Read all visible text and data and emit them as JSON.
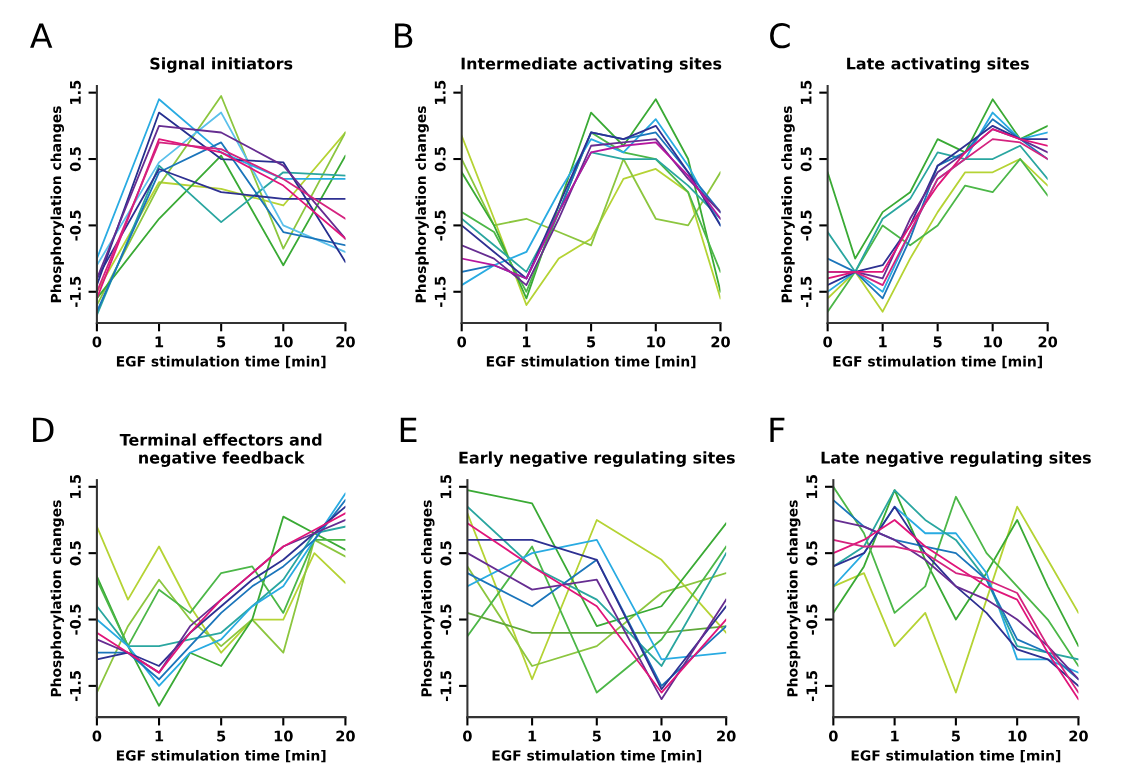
{
  "chart_data": [
    {
      "type": "line",
      "title": "Signal initiators",
      "xlabel": "EGF stimulation time [min]",
      "ylabel": "Phosphorylation changes",
      "annotations": [
        "A"
      ],
      "categories": [
        "0",
        "1",
        "5",
        "10",
        "20"
      ],
      "ylim": [
        -1.97,
        1.6
      ],
      "yticks": [
        -1.5,
        -0.5,
        0.5,
        1.5
      ],
      "grid": false,
      "series": [
        {
          "color": "#b5d334",
          "values": [
            -1.5,
            0.15,
            0.05,
            -0.2,
            0.9
          ]
        },
        {
          "color": "#8cc63f",
          "values": [
            -1.7,
            0.1,
            1.45,
            -0.85,
            0.9
          ]
        },
        {
          "color": "#3aaa35",
          "values": [
            -1.6,
            -0.4,
            0.55,
            -1.1,
            0.55
          ]
        },
        {
          "color": "#2aa6a0",
          "values": [
            -1.85,
            0.4,
            -0.45,
            0.3,
            0.25
          ]
        },
        {
          "color": "#5bc0eb",
          "values": [
            -1.1,
            0.45,
            1.2,
            -0.5,
            -0.9
          ]
        },
        {
          "color": "#29abe2",
          "values": [
            -1.0,
            1.4,
            0.6,
            0.2,
            0.2
          ]
        },
        {
          "color": "#1b75bb",
          "values": [
            -1.8,
            0.3,
            0.75,
            -0.6,
            -0.8
          ]
        },
        {
          "color": "#2e3192",
          "values": [
            -1.3,
            0.35,
            0.0,
            -0.1,
            -0.1
          ]
        },
        {
          "color": "#262f8f",
          "values": [
            -1.4,
            1.2,
            0.5,
            0.45,
            -1.05
          ]
        },
        {
          "color": "#662d91",
          "values": [
            -1.3,
            1.0,
            0.9,
            0.4,
            -0.7
          ]
        },
        {
          "color": "#e0157a",
          "values": [
            -1.6,
            0.8,
            0.6,
            0.1,
            -0.7
          ]
        },
        {
          "color": "#d4237f",
          "values": [
            -1.5,
            0.75,
            0.65,
            0.2,
            -0.4
          ]
        }
      ]
    },
    {
      "type": "line",
      "title": "Intermediate activating sites",
      "xlabel": "EGF stimulation time [min]",
      "ylabel": "Phosphorylation changes",
      "annotations": [
        "B"
      ],
      "categories": [
        "0",
        null,
        "1",
        null,
        "5",
        null,
        "10",
        null,
        "20"
      ],
      "ylim": [
        -1.97,
        1.6
      ],
      "yticks": [
        -1.5,
        -0.5,
        0.5,
        1.5
      ],
      "grid": false,
      "series": [
        {
          "color": "#b5d334",
          "values": [
            0.85,
            -0.4,
            -1.7,
            -1.0,
            -0.7,
            0.2,
            0.35,
            0.0,
            -1.6
          ]
        },
        {
          "color": "#8cc63f",
          "values": [
            0.5,
            -0.5,
            -0.4,
            -0.6,
            -0.8,
            0.5,
            -0.4,
            -0.5,
            0.3
          ]
        },
        {
          "color": "#3aaa35",
          "values": [
            0.3,
            -0.5,
            -1.6,
            -0.2,
            1.2,
            0.7,
            1.4,
            0.5,
            -1.5
          ]
        },
        {
          "color": "#4cb748",
          "values": [
            -0.3,
            -0.6,
            -1.5,
            -0.3,
            0.9,
            0.6,
            0.5,
            0.0,
            -1.2
          ]
        },
        {
          "color": "#2aa6a0",
          "values": [
            -0.4,
            -0.8,
            -1.2,
            -0.3,
            0.6,
            0.5,
            0.5,
            0.1,
            -0.4
          ]
        },
        {
          "color": "#29abe2",
          "values": [
            -1.4,
            -1.1,
            -0.9,
            0.0,
            0.8,
            0.6,
            1.1,
            0.4,
            -0.5
          ]
        },
        {
          "color": "#1b75bb",
          "values": [
            -1.2,
            -1.1,
            -1.3,
            -0.3,
            0.9,
            0.8,
            0.9,
            0.3,
            -0.3
          ]
        },
        {
          "color": "#2e3192",
          "values": [
            -0.5,
            -0.9,
            -1.3,
            -0.2,
            0.9,
            0.8,
            1.0,
            0.3,
            -0.5
          ]
        },
        {
          "color": "#662d91",
          "values": [
            -0.8,
            -1.0,
            -1.4,
            -0.4,
            0.7,
            0.75,
            0.8,
            0.2,
            -0.3
          ]
        },
        {
          "color": "#b5179e",
          "values": [
            -1.0,
            -1.1,
            -1.3,
            -0.3,
            0.6,
            0.7,
            0.75,
            0.25,
            -0.4
          ]
        }
      ]
    },
    {
      "type": "line",
      "title": "Late activating sites",
      "xlabel": "EGF stimulation time [min]",
      "ylabel": "Phosphorylation changes",
      "annotations": [
        "C"
      ],
      "categories": [
        "0",
        null,
        "1",
        null,
        "5",
        null,
        "10",
        null,
        "20"
      ],
      "ylim": [
        -1.97,
        1.6
      ],
      "yticks": [
        -1.5,
        -0.5,
        0.5,
        1.5
      ],
      "grid": false,
      "series": [
        {
          "color": "#b5d334",
          "values": [
            -1.6,
            -1.2,
            -1.8,
            -1.0,
            -0.3,
            0.3,
            0.3,
            0.5,
            0.1
          ]
        },
        {
          "color": "#3aaa35",
          "values": [
            0.3,
            -1.0,
            -0.3,
            0.0,
            0.8,
            0.6,
            1.4,
            0.8,
            1.0
          ]
        },
        {
          "color": "#4cb748",
          "values": [
            -1.8,
            -1.2,
            -0.5,
            -0.8,
            -0.5,
            0.1,
            0.0,
            0.5,
            -0.05
          ]
        },
        {
          "color": "#2aa6a0",
          "values": [
            -0.6,
            -1.2,
            -0.4,
            -0.1,
            0.6,
            0.5,
            0.5,
            0.7,
            0.2
          ]
        },
        {
          "color": "#29abe2",
          "values": [
            -1.5,
            -1.2,
            -1.5,
            -0.6,
            0.2,
            0.5,
            1.2,
            0.8,
            0.9
          ]
        },
        {
          "color": "#1b75bb",
          "values": [
            -1.0,
            -1.2,
            -1.6,
            -0.7,
            0.4,
            0.6,
            1.1,
            0.8,
            0.5
          ]
        },
        {
          "color": "#2e3192",
          "values": [
            -1.4,
            -1.2,
            -1.1,
            -0.5,
            0.4,
            0.7,
            1.0,
            0.8,
            0.8
          ]
        },
        {
          "color": "#662d91",
          "values": [
            -1.2,
            -1.2,
            -1.3,
            -0.4,
            0.3,
            0.6,
            0.95,
            0.8,
            0.6
          ]
        },
        {
          "color": "#e0157a",
          "values": [
            -1.3,
            -1.2,
            -1.2,
            -0.5,
            0.1,
            0.6,
            0.95,
            0.8,
            0.7
          ]
        },
        {
          "color": "#d4237f",
          "values": [
            -1.2,
            -1.2,
            -1.4,
            -0.6,
            0.2,
            0.5,
            0.8,
            0.75,
            0.5
          ]
        }
      ]
    },
    {
      "type": "line",
      "title": "Terminal effectors and\nnegative feedback",
      "xlabel": "EGF stimulation time [min]",
      "ylabel": "Phosphorylation changes",
      "annotations": [
        "D"
      ],
      "categories": [
        "0",
        null,
        "1",
        null,
        "5",
        null,
        "10",
        null,
        "20"
      ],
      "ylim": [
        -1.97,
        1.6
      ],
      "yticks": [
        -1.5,
        -0.5,
        0.5,
        1.5
      ],
      "grid": false,
      "series": [
        {
          "color": "#b5d334",
          "values": [
            0.9,
            -0.2,
            0.6,
            -0.3,
            -1.0,
            -0.5,
            -0.5,
            0.5,
            0.05
          ]
        },
        {
          "color": "#8cc63f",
          "values": [
            -1.6,
            -0.6,
            0.1,
            -0.5,
            -0.9,
            -0.5,
            -1.0,
            0.7,
            0.45
          ]
        },
        {
          "color": "#3aaa35",
          "values": [
            0.15,
            -0.9,
            -1.8,
            -1.0,
            -1.2,
            -0.5,
            1.05,
            0.8,
            0.55
          ]
        },
        {
          "color": "#4cb748",
          "values": [
            0.1,
            -0.9,
            -0.05,
            -0.4,
            0.2,
            0.3,
            -0.4,
            0.7,
            0.7
          ]
        },
        {
          "color": "#2aa6a0",
          "values": [
            -0.3,
            -0.9,
            -0.9,
            -0.8,
            -0.7,
            -0.3,
            0.1,
            0.8,
            0.9
          ]
        },
        {
          "color": "#29abe2",
          "values": [
            -0.5,
            -0.9,
            -1.5,
            -1.0,
            -0.8,
            -0.3,
            0.0,
            0.7,
            1.4
          ]
        },
        {
          "color": "#1b75bb",
          "values": [
            -1.0,
            -1.0,
            -1.4,
            -0.9,
            -0.4,
            0.0,
            0.3,
            0.7,
            1.3
          ]
        },
        {
          "color": "#2e3192",
          "values": [
            -1.1,
            -1.0,
            -1.2,
            -0.7,
            -0.3,
            0.1,
            0.4,
            0.8,
            1.2
          ]
        },
        {
          "color": "#662d91",
          "values": [
            -0.8,
            -1.0,
            -1.3,
            -0.6,
            -0.2,
            0.2,
            0.6,
            0.8,
            1.0
          ]
        },
        {
          "color": "#e0157a",
          "values": [
            -0.7,
            -1.0,
            -1.3,
            -0.7,
            -0.2,
            0.2,
            0.6,
            0.85,
            1.1
          ]
        }
      ]
    },
    {
      "type": "line",
      "title": "Early negative regulating sites",
      "xlabel": "EGF stimulation time [min]",
      "ylabel": "Phosphorylation changes",
      "annotations": [
        "E"
      ],
      "categories": [
        "0",
        "1",
        "5",
        "10",
        "20"
      ],
      "ylim": [
        -1.97,
        1.6
      ],
      "yticks": [
        -1.5,
        -0.5,
        0.5,
        1.5
      ],
      "grid": false,
      "series": [
        {
          "color": "#b5d334",
          "values": [
            1.1,
            -1.4,
            1.0,
            0.4,
            -0.7
          ]
        },
        {
          "color": "#8cc63f",
          "values": [
            0.3,
            -1.2,
            -0.9,
            -0.1,
            0.2
          ]
        },
        {
          "color": "#3aaa35",
          "values": [
            1.45,
            1.25,
            -0.6,
            -0.3,
            0.95
          ]
        },
        {
          "color": "#4cb748",
          "values": [
            -0.75,
            0.6,
            -1.6,
            -0.8,
            0.6
          ]
        },
        {
          "color": "#5fa83a",
          "values": [
            -0.4,
            -0.7,
            -0.7,
            -0.7,
            -0.6
          ]
        },
        {
          "color": "#2aa6a0",
          "values": [
            1.2,
            0.3,
            -0.2,
            -1.2,
            0.5
          ]
        },
        {
          "color": "#29abe2",
          "values": [
            0.0,
            0.5,
            0.7,
            -1.1,
            -1.0
          ]
        },
        {
          "color": "#1b75bb",
          "values": [
            0.2,
            -0.3,
            0.4,
            -1.5,
            -0.6
          ]
        },
        {
          "color": "#2e3192",
          "values": [
            0.7,
            0.7,
            0.4,
            -1.55,
            -0.3
          ]
        },
        {
          "color": "#662d91",
          "values": [
            0.5,
            -0.05,
            0.1,
            -1.7,
            -0.2
          ]
        },
        {
          "color": "#e0157a",
          "values": [
            0.95,
            0.3,
            -0.3,
            -1.6,
            -0.5
          ]
        }
      ]
    },
    {
      "type": "line",
      "title": "Late negative regulating sites",
      "xlabel": "EGF stimulation time [min]",
      "ylabel": "Phosphorylation changes",
      "annotations": [
        "F"
      ],
      "categories": [
        "0",
        null,
        "1",
        null,
        "5",
        null,
        "10",
        null,
        "20"
      ],
      "ylim": [
        -1.97,
        1.6
      ],
      "yticks": [
        -1.5,
        -0.5,
        0.5,
        1.5
      ],
      "grid": false,
      "series": [
        {
          "color": "#b5d334",
          "values": [
            0.0,
            0.2,
            -0.9,
            -0.4,
            -1.6,
            -0.2,
            1.2,
            0.4,
            -0.4
          ]
        },
        {
          "color": "#3aaa35",
          "values": [
            -0.4,
            0.3,
            1.45,
            0.4,
            -0.5,
            0.2,
            1.0,
            0.0,
            -0.9
          ]
        },
        {
          "color": "#4cb748",
          "values": [
            1.5,
            0.8,
            -0.4,
            0.0,
            1.35,
            0.5,
            0.0,
            -0.5,
            -1.2
          ]
        },
        {
          "color": "#29abe2",
          "values": [
            0.0,
            0.5,
            1.2,
            0.8,
            0.8,
            0.2,
            -1.1,
            -1.1,
            -1.3
          ]
        },
        {
          "color": "#2aa6a0",
          "values": [
            0.3,
            0.6,
            1.45,
            1.0,
            0.7,
            0.1,
            -0.9,
            -1.0,
            -1.1
          ]
        },
        {
          "color": "#1b75bb",
          "values": [
            1.3,
            0.9,
            0.7,
            0.6,
            0.5,
            0.1,
            -0.8,
            -1.0,
            -1.4
          ]
        },
        {
          "color": "#2e3192",
          "values": [
            0.3,
            0.5,
            1.2,
            0.5,
            0.0,
            -0.4,
            -0.95,
            -1.1,
            -1.5
          ]
        },
        {
          "color": "#662d91",
          "values": [
            1.0,
            0.9,
            0.7,
            0.4,
            0.0,
            -0.2,
            -0.5,
            -0.9,
            -1.4
          ]
        },
        {
          "color": "#e0157a",
          "values": [
            0.5,
            0.7,
            1.0,
            0.6,
            0.3,
            0.0,
            -0.2,
            -1.0,
            -1.7
          ]
        },
        {
          "color": "#d4237f",
          "values": [
            0.7,
            0.6,
            0.6,
            0.5,
            0.2,
            0.1,
            -0.1,
            -0.9,
            -1.6
          ]
        }
      ]
    }
  ]
}
